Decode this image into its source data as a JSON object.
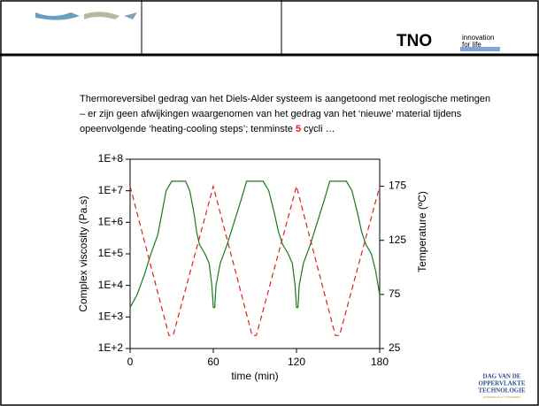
{
  "header": {
    "brand": "TNO",
    "tagline_1": "innovation",
    "tagline_2": "for life"
  },
  "intro": {
    "text_before": "Thermoreversibel gedrag van het Diels-Alder systeem is aangetoond met reologische metingen – er zijn geen afwijkingen waargenomen van het gedrag van het ‘nieuwe’ material tijdens opeenvolgende ‘heating-cooling steps’; tenminste ",
    "highlight": "5",
    "text_after": " cycli …"
  },
  "footer_logo": {
    "line_1": "DAG VAN DE",
    "line_2": "OPPERVLAKTE",
    "line_3": "TECHNOLOGIE",
    "line_4": "DONDERDAG 27 NOVEMBER"
  },
  "chart_data": {
    "type": "line",
    "xlabel": "time   (min)",
    "ylabel": "Complex viscosity   (Pa.s)",
    "y2label": "Temperature   (ºC)",
    "xlim": [
      0,
      180
    ],
    "xticks": [
      0,
      60,
      120,
      180
    ],
    "ylim": [
      100,
      100000000
    ],
    "yscale": "log",
    "yticks": [
      {
        "value": 100,
        "label": "1E+2"
      },
      {
        "value": 1000,
        "label": "1E+3"
      },
      {
        "value": 10000,
        "label": "1E+4"
      },
      {
        "value": 100000,
        "label": "1E+5"
      },
      {
        "value": 1000000,
        "label": "1E+6"
      },
      {
        "value": 10000000,
        "label": "1E+7"
      },
      {
        "value": 100000000,
        "label": "1E+8"
      }
    ],
    "y2lim": [
      25,
      200
    ],
    "y2ticks": [
      25,
      75,
      125,
      175
    ],
    "series": [
      {
        "name": "Complex viscosity",
        "color": "#1a7a1a",
        "dash": false,
        "x": [
          0,
          5,
          10,
          15,
          20,
          23,
          26,
          30,
          36,
          40,
          43,
          46,
          48,
          50,
          54,
          57,
          59,
          60,
          61,
          62,
          65,
          70,
          75,
          80,
          84,
          96,
          100,
          104,
          107,
          110,
          114,
          117,
          119,
          120,
          121,
          122,
          125,
          130,
          135,
          140,
          144,
          156,
          160,
          164,
          167,
          170,
          174,
          177,
          180
        ],
        "values": [
          2000,
          5000,
          20000,
          100000,
          400000,
          2000000,
          10000000,
          20000000,
          20000000,
          20000000,
          10000000,
          2000000,
          500000,
          200000,
          100000,
          50000,
          10000,
          2000,
          2000,
          10000,
          50000,
          200000,
          1000000,
          5000000,
          20000000,
          20000000,
          10000000,
          2000000,
          500000,
          200000,
          100000,
          50000,
          10000,
          2000,
          2000,
          10000,
          50000,
          200000,
          1000000,
          5000000,
          20000000,
          20000000,
          10000000,
          2000000,
          500000,
          200000,
          100000,
          30000,
          5000
        ]
      },
      {
        "name": "Temperature",
        "color": "#e0201b",
        "dash": true,
        "axis": "y2",
        "x": [
          0,
          28,
          31,
          60,
          88,
          91,
          120,
          148,
          151,
          180
        ],
        "values": [
          175,
          37,
          37,
          175,
          37,
          37,
          175,
          37,
          37,
          175
        ]
      }
    ]
  }
}
